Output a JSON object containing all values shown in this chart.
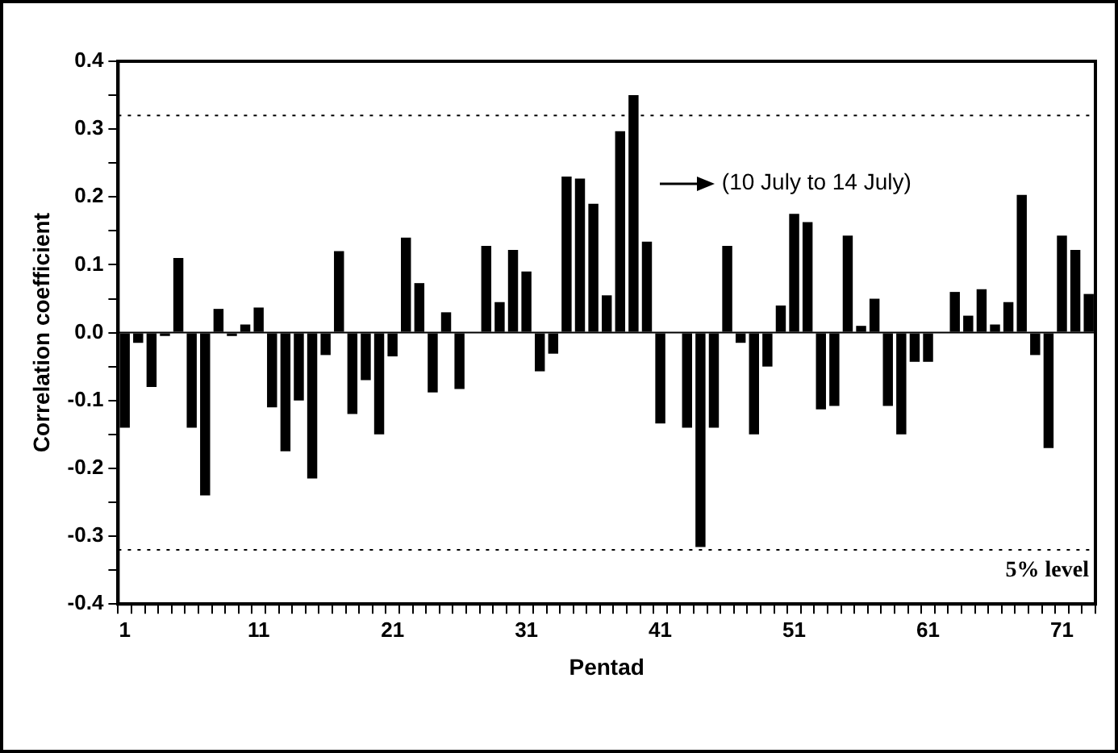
{
  "chart_data": {
    "type": "bar",
    "xlabel": "Pentad",
    "ylabel": "Correlation coefficient",
    "categories": [
      "1",
      null,
      null,
      null,
      null,
      null,
      null,
      null,
      null,
      null,
      "11",
      null,
      null,
      null,
      null,
      null,
      null,
      null,
      null,
      null,
      "21",
      null,
      null,
      null,
      null,
      null,
      null,
      null,
      null,
      null,
      "31",
      null,
      null,
      null,
      null,
      null,
      null,
      null,
      null,
      null,
      "41",
      null,
      null,
      null,
      null,
      null,
      null,
      null,
      null,
      null,
      "51",
      null,
      null,
      null,
      null,
      null,
      null,
      null,
      null,
      null,
      "61",
      null,
      null,
      null,
      null,
      null,
      null,
      null,
      null,
      null,
      "71",
      null,
      null
    ],
    "values": [
      -0.14,
      -0.015,
      -0.08,
      -0.005,
      0.11,
      -0.14,
      -0.24,
      0.035,
      -0.005,
      0.012,
      0.037,
      -0.11,
      -0.175,
      -0.1,
      -0.215,
      -0.033,
      0.12,
      -0.12,
      -0.07,
      -0.15,
      -0.035,
      0.14,
      0.073,
      -0.088,
      0.03,
      -0.083,
      0,
      0.128,
      0.045,
      0.122,
      0.09,
      -0.057,
      -0.031,
      0.23,
      0.227,
      0.19,
      0.055,
      0.297,
      0.35,
      0.134,
      -0.134,
      0,
      -0.14,
      -0.316,
      -0.14,
      0.128,
      -0.015,
      -0.15,
      -0.05,
      0.04,
      0.175,
      0.163,
      -0.113,
      -0.108,
      0.143,
      0.01,
      0.05,
      -0.108,
      -0.15,
      -0.043,
      -0.043,
      0,
      0.06,
      0.025,
      0.064,
      0.012,
      0.045,
      0.203,
      -0.033,
      -0.17,
      0.143,
      0.122,
      0.057
    ],
    "color": "#000000",
    "ylim": [
      -0.4,
      0.4
    ],
    "yticks": [
      -0.4,
      {
        "value": -0.35,
        "label": null
      },
      -0.3,
      {
        "value": -0.25,
        "label": null
      },
      -0.2,
      {
        "value": -0.15,
        "label": null
      },
      -0.1,
      {
        "value": -0.05,
        "label": null
      },
      {
        "value": 0,
        "label": "0.0"
      },
      {
        "value": 0.05,
        "label": null
      },
      0.1,
      {
        "value": 0.15,
        "label": null
      },
      0.2,
      {
        "value": 0.25,
        "label": null
      },
      0.3,
      {
        "value": 0.35,
        "label": null
      },
      0.4
    ],
    "ref_lines": [
      {
        "axis": "y",
        "value": 0,
        "line_style": "solid",
        "color": "#000000"
      },
      {
        "axis": "y",
        "value": 0.32,
        "line_style": "dotted",
        "color": "#000000"
      },
      {
        "axis": "y",
        "value": -0.32,
        "line_style": "dotted",
        "color": "#000000",
        "label": "5% level"
      }
    ],
    "annotations": [
      "(10 July to 14 July)"
    ],
    "grid": false,
    "legend": false
  }
}
